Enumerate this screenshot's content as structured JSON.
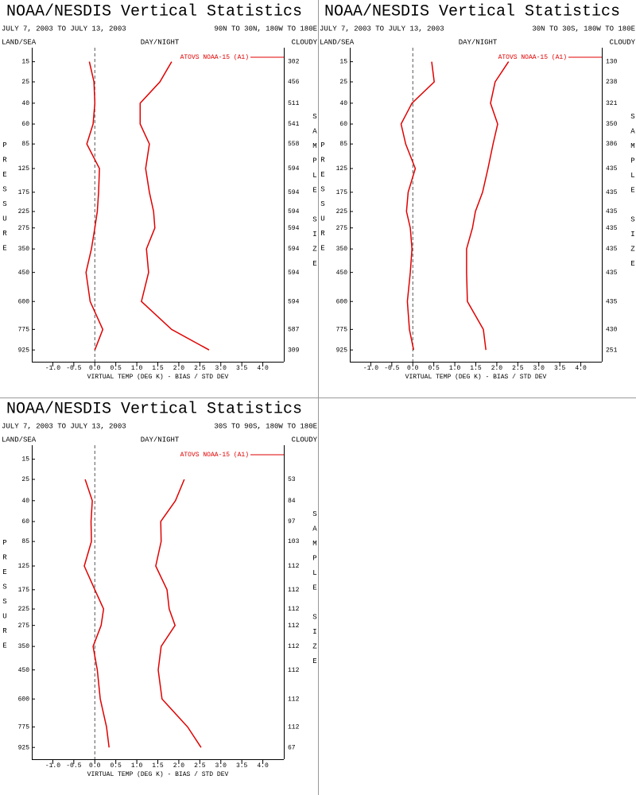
{
  "chart_data": [
    {
      "type": "line",
      "title": "NOAA/NESDIS Vertical Statistics",
      "subtitle": "JULY 7, 2003 TO JULY 13, 2003",
      "region": "90N TO 30N, 180W TO 180E",
      "left_label": "LAND/SEA",
      "center_label": "DAY/NIGHT",
      "right_label": "CLOUDY",
      "xlabel": "VIRTUAL TEMP (DEG K) - BIAS / STD DEV",
      "ylabel": "PRESSURE",
      "y2label": "SAMPLE SIZE",
      "xlim": [
        -1.5,
        4.5
      ],
      "xticks": [
        {
          "value": -1,
          "label": "-1.0"
        },
        -0.5,
        {
          "value": 0,
          "label": "0.0"
        },
        0.5,
        {
          "value": 1,
          "label": "1.0"
        },
        1.5,
        {
          "value": 2,
          "label": "2.0"
        },
        2.5,
        {
          "value": 3,
          "label": "3.0"
        },
        3.5,
        {
          "value": 4,
          "label": "4.0"
        }
      ],
      "ylim": [
        10,
        1000
      ],
      "yscale": "power",
      "yexponent": 0.286,
      "yinverted": true,
      "yticks": [
        15,
        25,
        40,
        60,
        85,
        125,
        175,
        225,
        275,
        350,
        450,
        600,
        775,
        925
      ],
      "series": [
        {
          "name": "ATOVS NOAA-15 (A1)",
          "color": "#e00000",
          "bias": [
            -0.13,
            -0.02,
            0,
            -0.04,
            -0.19,
            0.11,
            0.09,
            0.06,
            0,
            -0.08,
            -0.21,
            -0.11,
            0.19,
            0
          ],
          "std_dev": [
            1.83,
            1.55,
            1.08,
            1.08,
            1.3,
            1.21,
            1.3,
            1.4,
            1.43,
            1.23,
            1.28,
            1.11,
            1.83,
            2.72
          ]
        }
      ],
      "sample_size": [
        302,
        456,
        511,
        541,
        558,
        594,
        594,
        594,
        594,
        594,
        594,
        594,
        587,
        309
      ]
    },
    {
      "type": "line",
      "title": "NOAA/NESDIS Vertical Statistics",
      "subtitle": "JULY 7, 2003 TO JULY 13, 2003",
      "region": "30N TO 30S, 180W TO 180E",
      "left_label": "LAND/SEA",
      "center_label": "DAY/NIGHT",
      "right_label": "CLOUDY",
      "xlabel": "VIRTUAL TEMP (DEG K) - BIAS / STD DEV",
      "ylabel": "PRESSURE",
      "y2label": "SAMPLE SIZE",
      "xlim": [
        -1.5,
        4.5
      ],
      "xticks": [
        {
          "value": -1,
          "label": "-1.0"
        },
        -0.5,
        {
          "value": 0,
          "label": "0.0"
        },
        0.5,
        {
          "value": 1,
          "label": "1.0"
        },
        1.5,
        {
          "value": 2,
          "label": "2.0"
        },
        2.5,
        {
          "value": 3,
          "label": "3.0"
        },
        3.5,
        {
          "value": 4,
          "label": "4.0"
        }
      ],
      "ylim": [
        10,
        1000
      ],
      "yscale": "power",
      "yexponent": 0.286,
      "yinverted": true,
      "yticks": [
        15,
        25,
        40,
        60,
        85,
        125,
        175,
        225,
        275,
        350,
        450,
        600,
        775,
        925
      ],
      "series": [
        {
          "name": "ATOVS NOAA-15 (A1)",
          "color": "#e00000",
          "bias": [
            0.45,
            0.51,
            -0.02,
            -0.28,
            -0.17,
            0.06,
            -0.11,
            -0.15,
            -0.06,
            -0.02,
            -0.06,
            -0.13,
            -0.08,
            0.02
          ],
          "std_dev": [
            2.28,
            1.96,
            1.85,
            2.02,
            1.91,
            1.79,
            1.66,
            1.49,
            1.42,
            1.28,
            1.28,
            1.3,
            1.68,
            1.74
          ]
        }
      ],
      "sample_size": [
        130,
        238,
        321,
        350,
        386,
        435,
        435,
        435,
        435,
        435,
        435,
        435,
        430,
        251
      ]
    },
    {
      "type": "line",
      "title": "NOAA/NESDIS Vertical Statistics",
      "subtitle": "JULY 7, 2003 TO JULY 13, 2003",
      "region": "30S TO 90S, 180W TO 180E",
      "left_label": "LAND/SEA",
      "center_label": "DAY/NIGHT",
      "right_label": "CLOUDY",
      "xlabel": "VIRTUAL TEMP (DEG K) - BIAS / STD DEV",
      "ylabel": "PRESSURE",
      "y2label": "SAMPLE SIZE",
      "xlim": [
        -1.5,
        4.5
      ],
      "xticks": [
        {
          "value": -1,
          "label": "-1.0"
        },
        -0.5,
        {
          "value": 0,
          "label": "0.0"
        },
        0.5,
        {
          "value": 1,
          "label": "1.0"
        },
        1.5,
        {
          "value": 2,
          "label": "2.0"
        },
        2.5,
        {
          "value": 3,
          "label": "3.0"
        },
        3.5,
        {
          "value": 4,
          "label": "4.0"
        }
      ],
      "ylim": [
        10,
        1000
      ],
      "yscale": "power",
      "yexponent": 0.286,
      "yinverted": true,
      "yticks": [
        15,
        25,
        40,
        60,
        85,
        125,
        175,
        225,
        275,
        350,
        450,
        600,
        775,
        925
      ],
      "series": [
        {
          "name": "ATOVS NOAA-15 (A1)",
          "color": "#e00000",
          "bias": [
            null,
            -0.23,
            -0.06,
            -0.09,
            -0.08,
            -0.25,
            0,
            0.21,
            0.15,
            -0.04,
            0.06,
            0.13,
            0.28,
            0.34
          ],
          "std_dev": [
            null,
            2.13,
            1.92,
            1.57,
            1.58,
            1.45,
            1.72,
            1.77,
            1.91,
            1.58,
            1.51,
            1.6,
            2.21,
            2.53
          ]
        }
      ],
      "sample_size": [
        null,
        53,
        84,
        97,
        103,
        112,
        112,
        112,
        112,
        112,
        112,
        112,
        112,
        67
      ]
    }
  ]
}
